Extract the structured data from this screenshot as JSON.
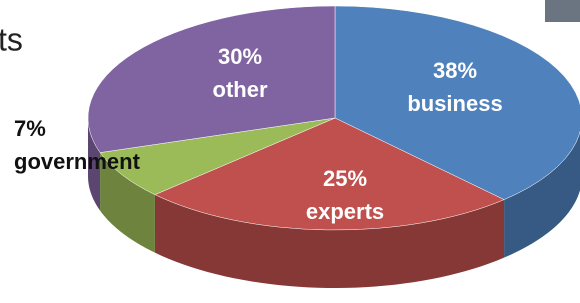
{
  "slide_text": "ts",
  "chart_data": {
    "type": "pie",
    "categories": [
      "business",
      "experts",
      "government",
      "other"
    ],
    "values": [
      38,
      25,
      7,
      30
    ],
    "value_labels": [
      "38%",
      "25%",
      "7%",
      "30%"
    ],
    "colors": [
      "#4f81bd",
      "#c0504d",
      "#9bbb59",
      "#8064a2"
    ]
  }
}
